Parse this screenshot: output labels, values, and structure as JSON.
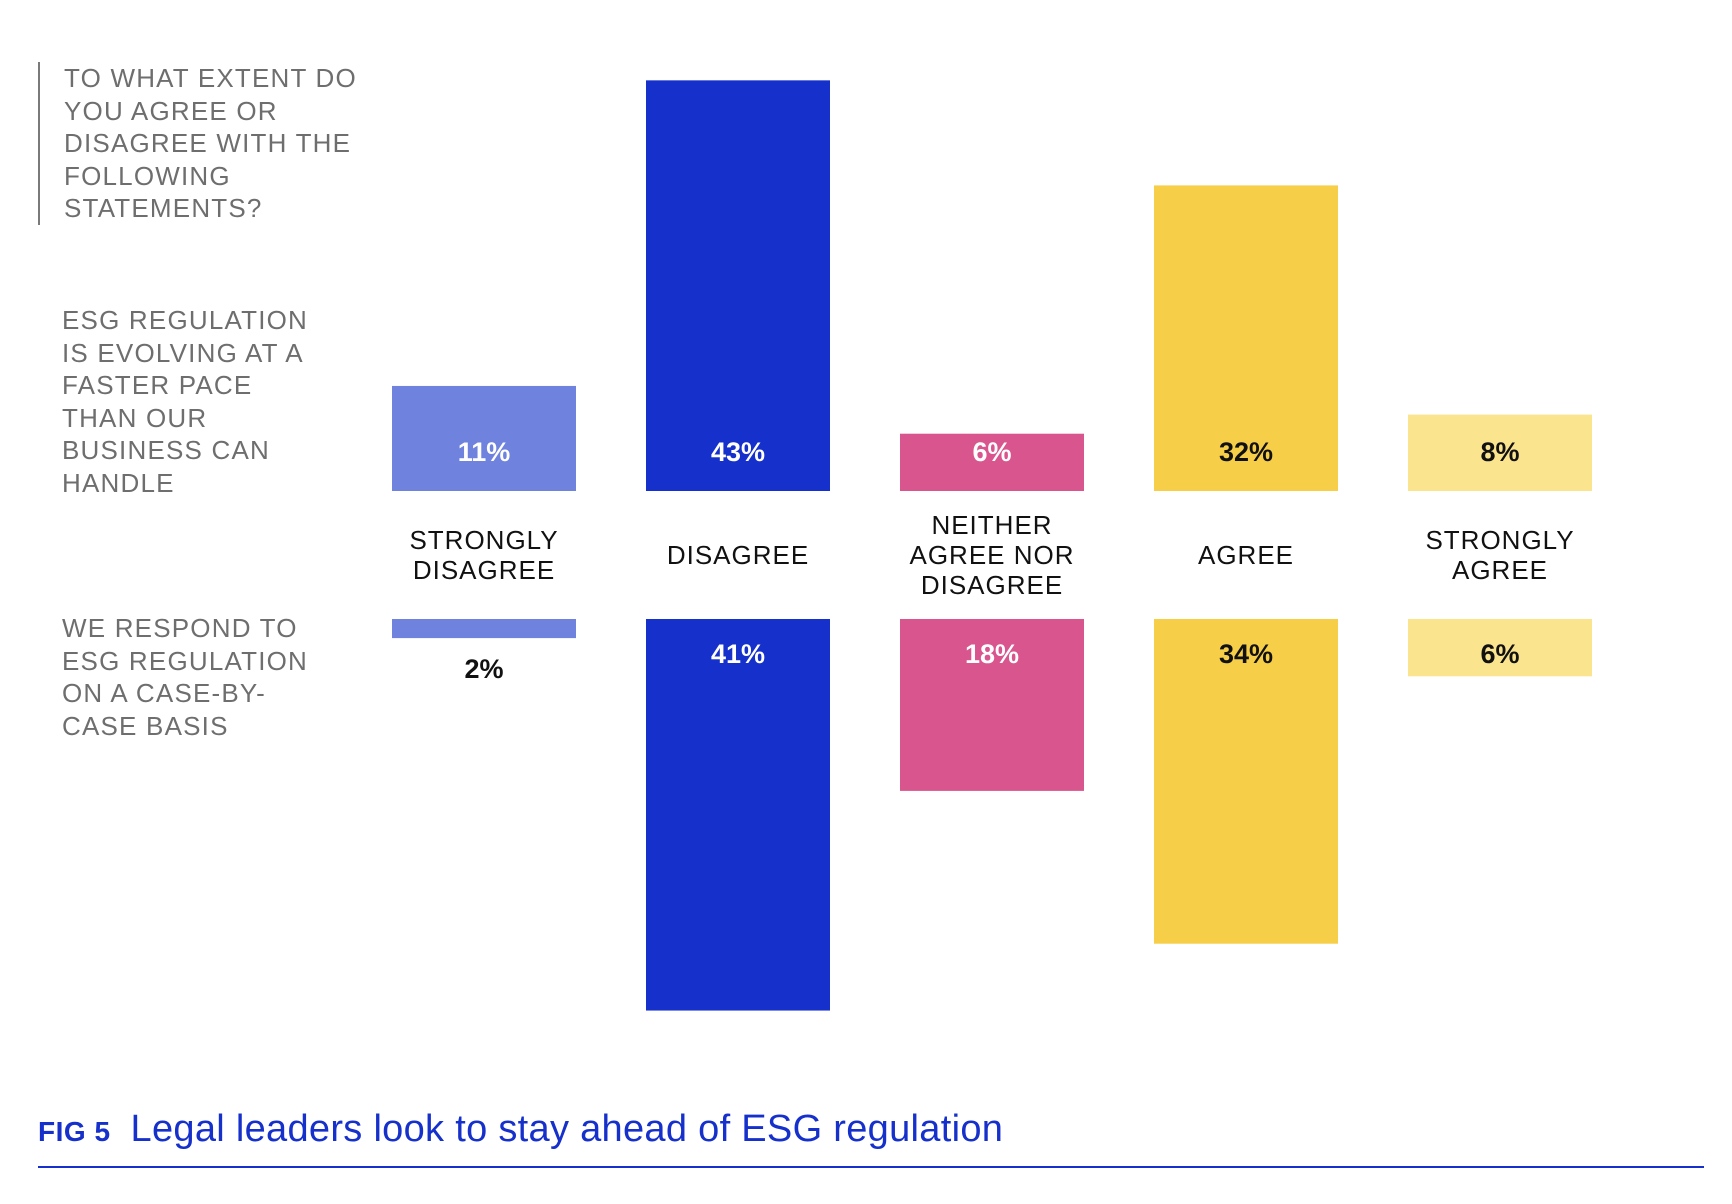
{
  "question": "TO WHAT EXTENT DO YOU AGREE OR DISAGREE WITH THE FOLLOWING STATEMENTS?",
  "figure": {
    "number": "FIG 5",
    "title": "Legal leaders look to stay ahead of ESG regulation"
  },
  "colors": {
    "accent": "#1530cb",
    "text_grey": "#6e6e6e"
  },
  "chart_data": {
    "type": "bar",
    "categories": [
      {
        "label": "STRONGLY DISAGREE",
        "lines": [
          "STRONGLY",
          "DISAGREE"
        ],
        "color": "#6e82de",
        "label_dark": false
      },
      {
        "label": "DISAGREE",
        "lines": [
          "DISAGREE"
        ],
        "color": "#1530cb",
        "label_dark": false
      },
      {
        "label": "NEITHER AGREE NOR DISAGREE",
        "lines": [
          "NEITHER",
          "AGREE NOR",
          "DISAGREE"
        ],
        "color": "#d9558d",
        "label_dark": false
      },
      {
        "label": "AGREE",
        "lines": [
          "AGREE"
        ],
        "color": "#f6ce47",
        "label_dark": true
      },
      {
        "label": "STRONGLY AGREE",
        "lines": [
          "STRONGLY",
          "AGREE"
        ],
        "color": "#fbe48e",
        "label_dark": true
      }
    ],
    "series": [
      {
        "name": "ESG REGULATION IS EVOLVING AT A FASTER PACE THAN OUR BUSINESS CAN HANDLE",
        "values": [
          11,
          43,
          6,
          32,
          8
        ],
        "labels": [
          "11%",
          "43%",
          "6%",
          "32%",
          "8%"
        ],
        "direction": "up"
      },
      {
        "name": "WE RESPOND TO ESG REGULATION ON A CASE-BY-CASE BASIS",
        "values": [
          2,
          41,
          18,
          34,
          6
        ],
        "labels": [
          "2%",
          "41%",
          "18%",
          "34%",
          "6%"
        ],
        "direction": "down"
      }
    ],
    "grid": false,
    "legend": "none"
  }
}
